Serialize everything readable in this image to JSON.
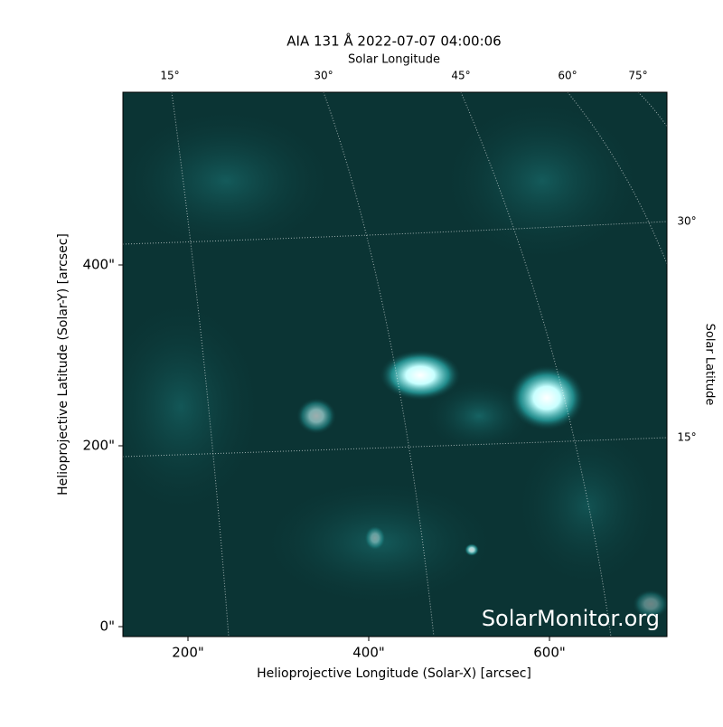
{
  "chart_data": {
    "type": "image",
    "title": "AIA 131 Å 2022-07-07 04:00:06",
    "x_label": "Helioprojective Longitude (Solar-X) [arcsec]",
    "y_label": "Helioprojective Latitude (Solar-Y) [arcsec]",
    "top_label": "Solar Longitude",
    "right_label": "Solar Latitude",
    "watermark": "SolarMonitor.org",
    "xlim": [
      128,
      730
    ],
    "ylim": [
      -11,
      591
    ],
    "xticks": [
      {
        "value": 200,
        "label": "200\""
      },
      {
        "value": 400,
        "label": "400\""
      },
      {
        "value": 600,
        "label": "600\""
      }
    ],
    "yticks": [
      {
        "value": 0,
        "label": "0\""
      },
      {
        "value": 200,
        "label": "200\""
      },
      {
        "value": 400,
        "label": "400\""
      }
    ],
    "lon_ticks": [
      {
        "value": 15,
        "label": "15°"
      },
      {
        "value": 30,
        "label": "30°"
      },
      {
        "value": 45,
        "label": "45°"
      },
      {
        "value": 60,
        "label": "60°"
      },
      {
        "value": 75,
        "label": "75°"
      }
    ],
    "lat_ticks": [
      {
        "value": 15,
        "label": "15°"
      },
      {
        "value": 30,
        "label": "30°"
      }
    ],
    "colormap": "#00e0e0"
  }
}
